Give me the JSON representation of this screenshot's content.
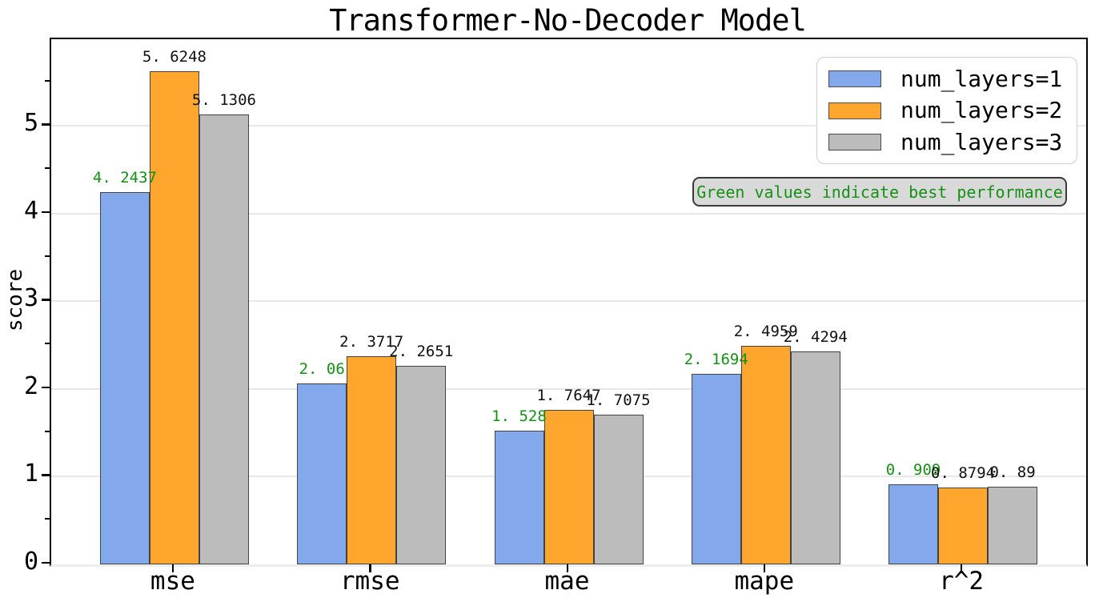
{
  "title": "Transformer-No-Decoder Model",
  "axes": {
    "ylabel": "score",
    "ytick_labels": [
      "0",
      "1",
      "2",
      "3",
      "4",
      "5"
    ],
    "xtick_labels": [
      "mse",
      "rmse",
      "mae",
      "mape",
      "r^2"
    ]
  },
  "note": {
    "text": "Green values indicate best performance"
  },
  "legend": {
    "items": [
      {
        "label": "num_layers=1",
        "color": "#84a8ec"
      },
      {
        "label": "num_layers=2",
        "color": "#ffa62e"
      },
      {
        "label": "num_layers=3",
        "color": "#bcbcbc"
      }
    ]
  },
  "colors": {
    "series1": "#84a8ec",
    "series2": "#ffa62e",
    "series3": "#bcbcbc",
    "bar_edge": "#424242",
    "best_value_label": "#149114",
    "value_label": "#111111",
    "grid": "#e8e8e8",
    "note_bg": "#d9d9d9",
    "note_text": "#149114"
  },
  "chart_data": {
    "type": "bar",
    "title": "Transformer-No-Decoder Model",
    "xlabel": "",
    "ylabel": "score",
    "categories": [
      "mse",
      "rmse",
      "mae",
      "mape",
      "r^2"
    ],
    "series": [
      {
        "name": "num_layers=1",
        "color": "#84a8ec",
        "values": [
          4.2437,
          2.06,
          1.528,
          2.1694,
          0.909
        ],
        "value_labels": [
          "4. 2437",
          "2. 06",
          "1. 528",
          "2. 1694",
          "0. 909"
        ],
        "is_best": true
      },
      {
        "name": "num_layers=2",
        "color": "#ffa62e",
        "values": [
          5.6248,
          2.3717,
          1.7647,
          2.4959,
          0.8794
        ],
        "value_labels": [
          "5. 6248",
          "2. 3717",
          "1. 7647",
          "2. 4959",
          "0. 8794"
        ],
        "is_best": false
      },
      {
        "name": "num_layers=3",
        "color": "#bcbcbc",
        "values": [
          5.1306,
          2.2651,
          1.7075,
          2.4294,
          0.89
        ],
        "value_labels": [
          "5. 1306",
          "2. 2651",
          "1. 7075",
          "2. 4294",
          "0. 89"
        ],
        "is_best": false
      }
    ],
    "yticks": [
      0,
      1,
      2,
      3,
      4,
      5
    ],
    "ylim": [
      0,
      5.99
    ],
    "grid": "horizontal-major",
    "legend_position": "upper-right",
    "annotation": "Green values indicate best performance",
    "best_rule": "green value labels mark the best score per metric"
  }
}
